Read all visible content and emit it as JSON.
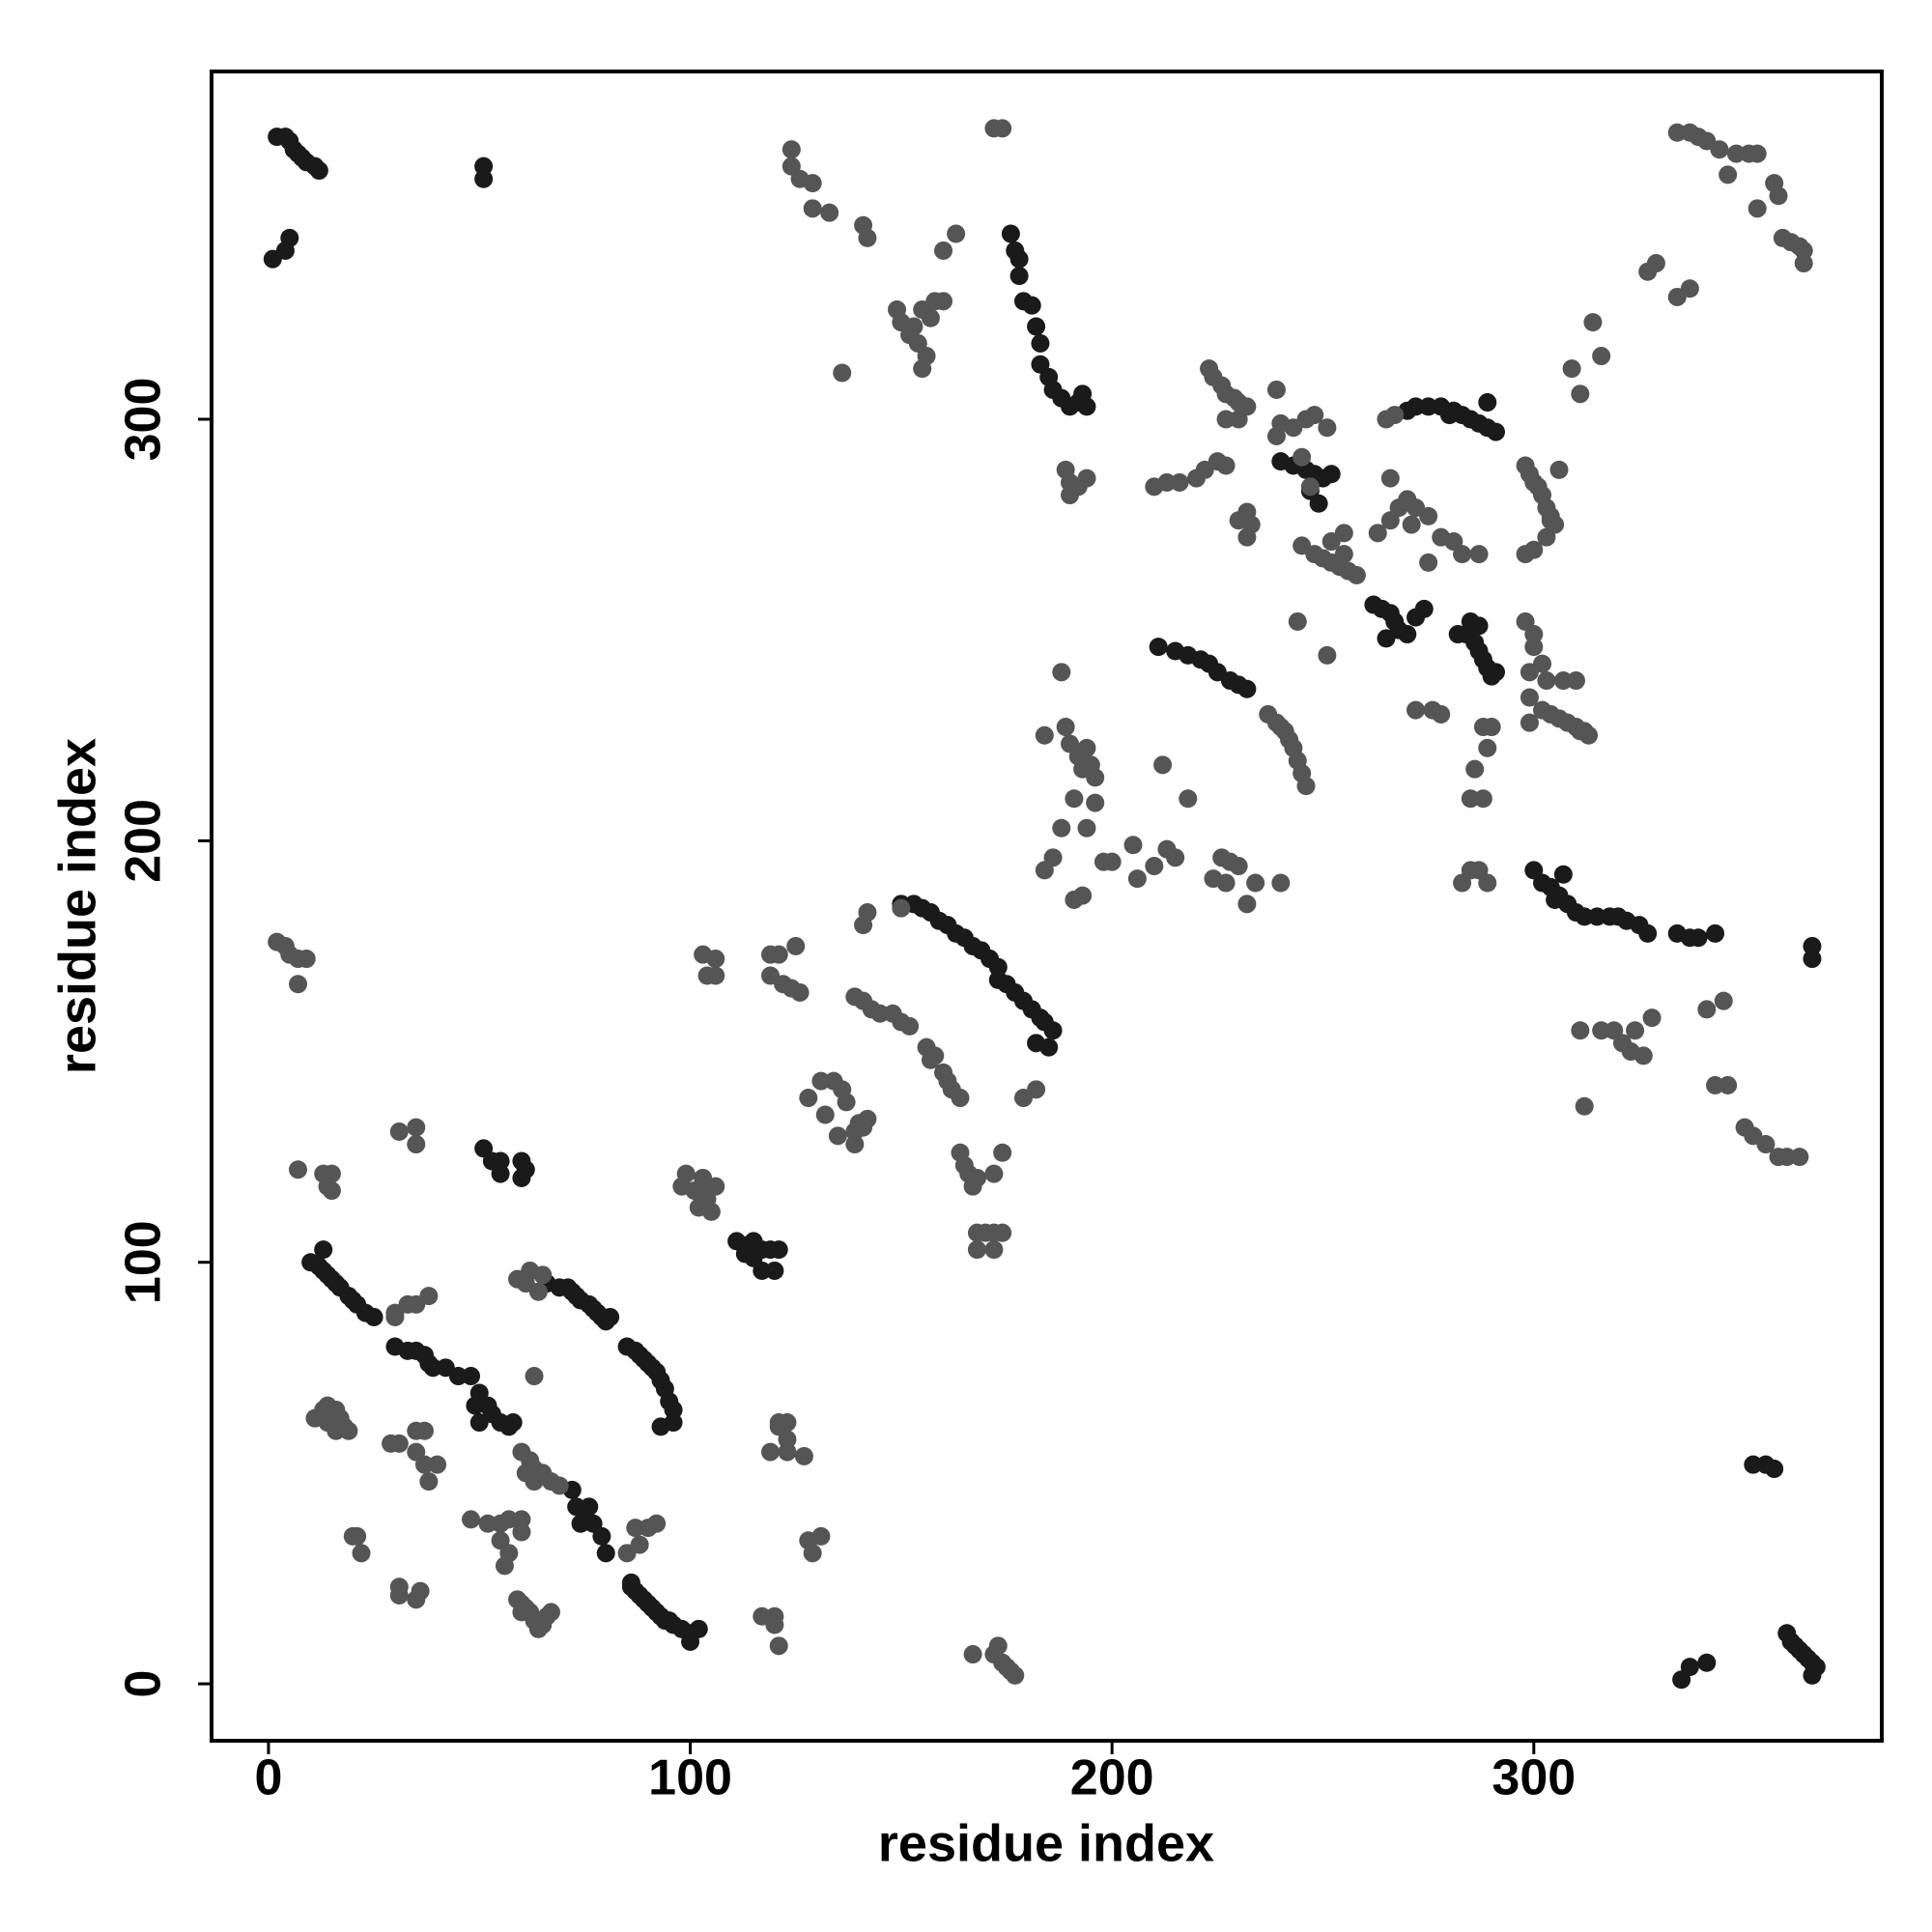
{
  "chart_data": {
    "type": "scatter",
    "xlabel": "residue index",
    "ylabel": "residue index",
    "xlim": [
      -13.5,
      382.5
    ],
    "ylim": [
      -13.5,
      382.5
    ],
    "xticks": [
      0,
      100,
      200,
      300
    ],
    "yticks": [
      0,
      100,
      200,
      300
    ],
    "grid": false,
    "series": [
      {
        "color": "#1a1a1a",
        "x": [
          2,
          4,
          5,
          6,
          7,
          8,
          9,
          11,
          12,
          51,
          51,
          5,
          1,
          4,
          10,
          12,
          13,
          14,
          15,
          16,
          17,
          19,
          20,
          21,
          23,
          25,
          13,
          30,
          33,
          35,
          37,
          39,
          42,
          45,
          38,
          48,
          50,
          52,
          53,
          55,
          57,
          58,
          50,
          49,
          66,
          69,
          71,
          72,
          73,
          74,
          76,
          77,
          78,
          79,
          80,
          81,
          85,
          87,
          88,
          89,
          90,
          91,
          92,
          93,
          94,
          95,
          96,
          93,
          96,
          111,
          113,
          115,
          117,
          119,
          115,
          117,
          120,
          113,
          121,
          150,
          153,
          155,
          157,
          159,
          161,
          163,
          165,
          167,
          169,
          171,
          173,
          173,
          175,
          177,
          179,
          181,
          183,
          184,
          186,
          182,
          185,
          176,
          177,
          178,
          178,
          179,
          181,
          182,
          183,
          183,
          185,
          186,
          188,
          190,
          192,
          194,
          193,
          211,
          215,
          218,
          221,
          223,
          225,
          228,
          230,
          232,
          240,
          243,
          246,
          248,
          250,
          252,
          247,
          249,
          262,
          264,
          266,
          267,
          268,
          270,
          272,
          274,
          265,
          270,
          272,
          275,
          278,
          281,
          283,
          285,
          287,
          289,
          289,
          291,
          280,
          282,
          284,
          286,
          287,
          288,
          289,
          290,
          285,
          287,
          291,
          300,
          302,
          304,
          306,
          308,
          310,
          312,
          315,
          318,
          320,
          322,
          325,
          327,
          334,
          337,
          339,
          343,
          307,
          305,
          366,
          366,
          360,
          361,
          362,
          363,
          364,
          365,
          366,
          367,
          366,
          335,
          337,
          341,
          352,
          355,
          357,
          86,
          87,
          88,
          89,
          90,
          91,
          92,
          93,
          94,
          95,
          96,
          98,
          100,
          100,
          102,
          86,
          72,
          73,
          75,
          77,
          79,
          80,
          74,
          76,
          51,
          53,
          55,
          60,
          61,
          55,
          60
        ],
        "values": [
          367,
          367,
          366,
          364,
          363,
          362,
          361,
          360,
          359,
          357,
          360,
          343,
          338,
          340,
          100,
          99,
          98,
          97,
          96,
          95,
          94,
          92,
          91,
          90,
          88,
          87,
          103,
          80,
          79,
          79,
          78,
          75,
          75,
          73,
          76,
          73,
          69,
          66,
          64,
          62,
          61,
          62,
          62,
          66,
          95,
          94,
          94,
          93,
          92,
          91,
          90,
          89,
          88,
          87,
          86,
          87,
          80,
          79,
          78,
          77,
          76,
          75,
          74,
          72,
          70,
          67,
          65,
          61,
          62,
          105,
          104,
          105,
          103,
          103,
          101,
          98,
          98,
          102,
          103,
          185,
          185,
          184,
          183,
          181,
          180,
          178,
          177,
          175,
          174,
          172,
          170,
          167,
          166,
          164,
          162,
          160,
          158,
          157,
          155,
          152,
          151,
          344,
          340,
          338,
          334,
          328,
          327,
          322,
          318,
          313,
          310,
          307,
          305,
          303,
          304,
          303,
          306,
          246,
          245,
          244,
          243,
          242,
          240,
          238,
          237,
          236,
          290,
          289,
          288,
          287,
          286,
          287,
          283,
          280,
          256,
          255,
          254,
          252,
          250,
          249,
          253,
          255,
          248,
          302,
          303,
          303,
          303,
          302,
          301,
          300,
          299,
          298,
          304,
          297,
          301,
          249,
          249,
          247,
          245,
          243,
          241,
          239,
          252,
          251,
          240,
          193,
          190,
          189,
          187,
          185,
          183,
          182,
          182,
          182,
          182,
          181,
          180,
          178,
          178,
          177,
          177,
          178,
          192,
          186,
          172,
          175,
          12,
          10,
          9,
          8,
          7,
          6,
          5,
          4,
          2,
          1,
          4,
          5,
          52,
          52,
          51,
          23,
          22,
          21,
          20,
          19,
          18,
          17,
          16,
          15,
          15,
          14,
          13,
          12,
          10,
          13,
          24,
          46,
          42,
          41,
          38,
          35,
          31,
          38,
          42,
          127,
          124,
          124,
          124,
          122,
          121,
          120
        ]
      },
      {
        "color": "#555555",
        "x": [
          2,
          4,
          5,
          7,
          9,
          7,
          7,
          13,
          14,
          15,
          15,
          11,
          13,
          14,
          16,
          17,
          18,
          14,
          16,
          19,
          20,
          22,
          21,
          30,
          33,
          35,
          38,
          30,
          29,
          31,
          35,
          37,
          35,
          40,
          38,
          37,
          31,
          35,
          35,
          59,
          61,
          62,
          64,
          65,
          63,
          60,
          62,
          63,
          65,
          67,
          69,
          61,
          63,
          98,
          99,
          101,
          103,
          104,
          106,
          105,
          102,
          103,
          103,
          106,
          104,
          106,
          119,
          121,
          119,
          122,
          124,
          126,
          125,
          121,
          123,
          123,
          123,
          119,
          121,
          127,
          131,
          128,
          129,
          128,
          131,
          134,
          136,
          137,
          132,
          135,
          139,
          140,
          142,
          141,
          139,
          139,
          141,
          143,
          145,
          148,
          150,
          152,
          141,
          142,
          150,
          156,
          158,
          160,
          161,
          162,
          164,
          157,
          164,
          165,
          166,
          168,
          172,
          174,
          167,
          168,
          170,
          172,
          174,
          168,
          172,
          179,
          182,
          172,
          174,
          124,
          124,
          126,
          129,
          129,
          133,
          141,
          142,
          136,
          149,
          150,
          152,
          153,
          154,
          155,
          157,
          156,
          155,
          158,
          160,
          160,
          163,
          189,
          190,
          192,
          194,
          190,
          188,
          184,
          189,
          190,
          192,
          193,
          195,
          196,
          194,
          191,
          196,
          194,
          188,
          186,
          184,
          191,
          193,
          198,
          200,
          237,
          239,
          241,
          242,
          243,
          244,
          245,
          246,
          240,
          210,
          213,
          216,
          220,
          222,
          225,
          227,
          223,
          224,
          226,
          227,
          229,
          230,
          232,
          227,
          230,
          232,
          233,
          232,
          230,
          239,
          240,
          243,
          246,
          248,
          251,
          239,
          245,
          247,
          245,
          248,
          250,
          252,
          254,
          256,
          258,
          252,
          255,
          255,
          244,
          251,
          263,
          266,
          268,
          270,
          272,
          275,
          266,
          271,
          265,
          267,
          278,
          281,
          283,
          287,
          275,
          298,
          299,
          300,
          301,
          302,
          303,
          304,
          305,
          306,
          303,
          304,
          298,
          300,
          309,
          311,
          314,
          316,
          327,
          329,
          334,
          337,
          334,
          337,
          339,
          341,
          344,
          348,
          351,
          353,
          346,
          353,
          357,
          358,
          359,
          361,
          363,
          364,
          364,
          167,
          172,
          174,
          175,
          176,
          177,
          173,
          355,
          358,
          360,
          363,
          350,
          352,
          343,
          346,
          341,
          345,
          311,
          316,
          319,
          321,
          323,
          326,
          324,
          328,
          312,
          299,
          302,
          304,
          306,
          308,
          310,
          312,
          313,
          299,
          307,
          311,
          226,
          228,
          230,
          224,
          227,
          232,
          234,
          213,
          215,
          210,
          218,
          212,
          205,
          206,
          240,
          283,
          287,
          289,
          285,
          285,
          288,
          286,
          289,
          288,
          290,
          276,
          278,
          272,
          300,
          300,
          299,
          302,
          303,
          298,
          310,
          85,
          88,
          90,
          92,
          87,
          59,
          60,
          61,
          62,
          63,
          65,
          66,
          67,
          64,
          60,
          55,
          57,
          52,
          55,
          57,
          56,
          60,
          60,
          48,
          117,
          120,
          120,
          121,
          35,
          31,
          31,
          36
        ],
        "values": [
          176,
          175,
          173,
          172,
          172,
          166,
          122,
          121,
          118,
          117,
          121,
          63,
          65,
          66,
          65,
          63,
          61,
          62,
          60,
          60,
          35,
          31,
          35,
          88,
          90,
          90,
          92,
          87,
          57,
          57,
          60,
          60,
          55,
          52,
          48,
          52,
          131,
          132,
          128,
          96,
          95,
          98,
          93,
          97,
          73,
          55,
          53,
          51,
          50,
          48,
          47,
          50,
          48,
          118,
          121,
          117,
          120,
          115,
          118,
          112,
          113,
          116,
          173,
          172,
          168,
          168,
          173,
          173,
          168,
          166,
          165,
          164,
          175,
          62,
          62,
          58,
          55,
          55,
          61,
          54,
          35,
          34,
          31,
          139,
          143,
          143,
          141,
          138,
          135,
          130,
          131,
          133,
          134,
          132,
          128,
          163,
          162,
          160,
          159,
          159,
          157,
          156,
          180,
          183,
          184,
          151,
          149,
          145,
          143,
          141,
          139,
          148,
          126,
          123,
          121,
          120,
          121,
          126,
          118,
          107,
          107,
          107,
          107,
          103,
          103,
          139,
          141,
          369,
          369,
          364,
          360,
          357,
          356,
          350,
          349,
          346,
          343,
          311,
          326,
          323,
          320,
          322,
          318,
          326,
          324,
          315,
          312,
          328,
          328,
          340,
          344,
          288,
          285,
          284,
          286,
          282,
          240,
          225,
          227,
          223,
          220,
          217,
          218,
          215,
          222,
          210,
          209,
          203,
          203,
          196,
          193,
          186,
          187,
          195,
          195,
          230,
          228,
          226,
          224,
          222,
          219,
          216,
          213,
          227,
          284,
          285,
          285,
          286,
          288,
          290,
          289,
          312,
          310,
          308,
          306,
          305,
          304,
          303,
          300,
          300,
          278,
          275,
          272,
          276,
          307,
          299,
          298,
          300,
          301,
          298,
          296,
          291,
          284,
          270,
          268,
          267,
          266,
          265,
          264,
          263,
          271,
          273,
          268,
          252,
          244,
          273,
          276,
          279,
          281,
          279,
          277,
          286,
          275,
          300,
          301,
          272,
          271,
          268,
          268,
          266,
          289,
          287,
          285,
          284,
          282,
          279,
          277,
          275,
          288,
          272,
          276,
          268,
          269,
          312,
          306,
          323,
          315,
          335,
          337,
          329,
          331,
          368,
          368,
          367,
          366,
          364,
          363,
          363,
          363,
          358,
          350,
          356,
          353,
          343,
          342,
          341,
          340,
          337,
          7,
          7,
          5,
          4,
          3,
          2,
          9,
          128,
          125,
          125,
          125,
          132,
          130,
          142,
          142,
          160,
          162,
          155,
          155,
          155,
          152,
          150,
          149,
          155,
          158,
          137,
          234,
          231,
          230,
          229,
          228,
          227,
          226,
          225,
          228,
          238,
          226,
          196,
          195,
          194,
          191,
          190,
          185,
          190,
          198,
          196,
          194,
          210,
          218,
          199,
          191,
          190,
          190,
          193,
          190,
          193,
          210,
          210,
          217,
          222,
          227,
          227,
          231,
          230,
          231,
          249,
          246,
          240,
          242,
          238,
          252,
          238,
          31,
          33,
          37,
          38,
          37,
          20,
          19,
          18,
          17,
          15,
          14,
          16,
          17,
          13,
          17,
          38,
          39,
          38,
          34,
          31,
          28,
          36,
          39,
          39,
          16,
          16,
          14,
          9,
          20,
          23,
          21,
          22
        ]
      }
    ]
  }
}
